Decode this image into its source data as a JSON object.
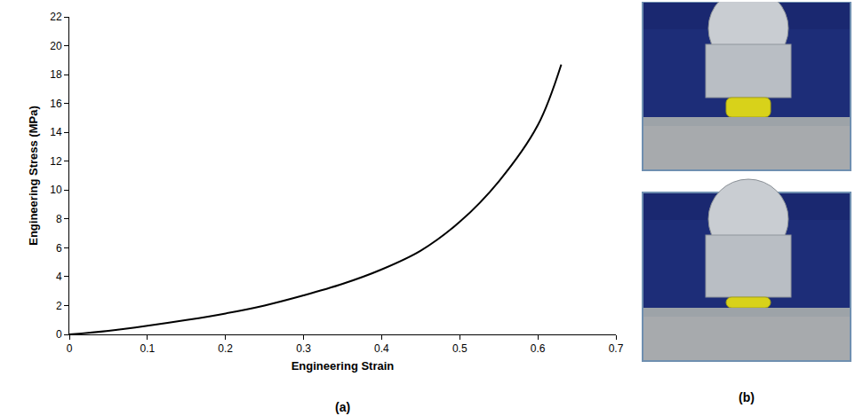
{
  "chart_data": {
    "type": "line",
    "caption": "(a)",
    "x_label": "Engineering Strain",
    "y_label": "Engineering Stress (MPa)",
    "x": [
      0,
      0.05,
      0.1,
      0.15,
      0.2,
      0.25,
      0.3,
      0.35,
      0.4,
      0.45,
      0.5,
      0.55,
      0.6,
      0.63
    ],
    "values": [
      0,
      0.25,
      0.6,
      1.0,
      1.45,
      2.0,
      2.7,
      3.5,
      4.5,
      5.8,
      7.8,
      10.6,
      14.5,
      18.7
    ],
    "color": "#000000",
    "xlim": [
      0,
      0.7
    ],
    "xticks": [
      0,
      0.1,
      0.2,
      0.3,
      0.4,
      0.5,
      0.6,
      0.7
    ],
    "ylim": [
      0,
      22
    ],
    "yticks": [
      0,
      2,
      4,
      6,
      8,
      10,
      12,
      14,
      16,
      18,
      20,
      22
    ],
    "grid": false
  },
  "panel_b": {
    "caption": "(b)"
  }
}
